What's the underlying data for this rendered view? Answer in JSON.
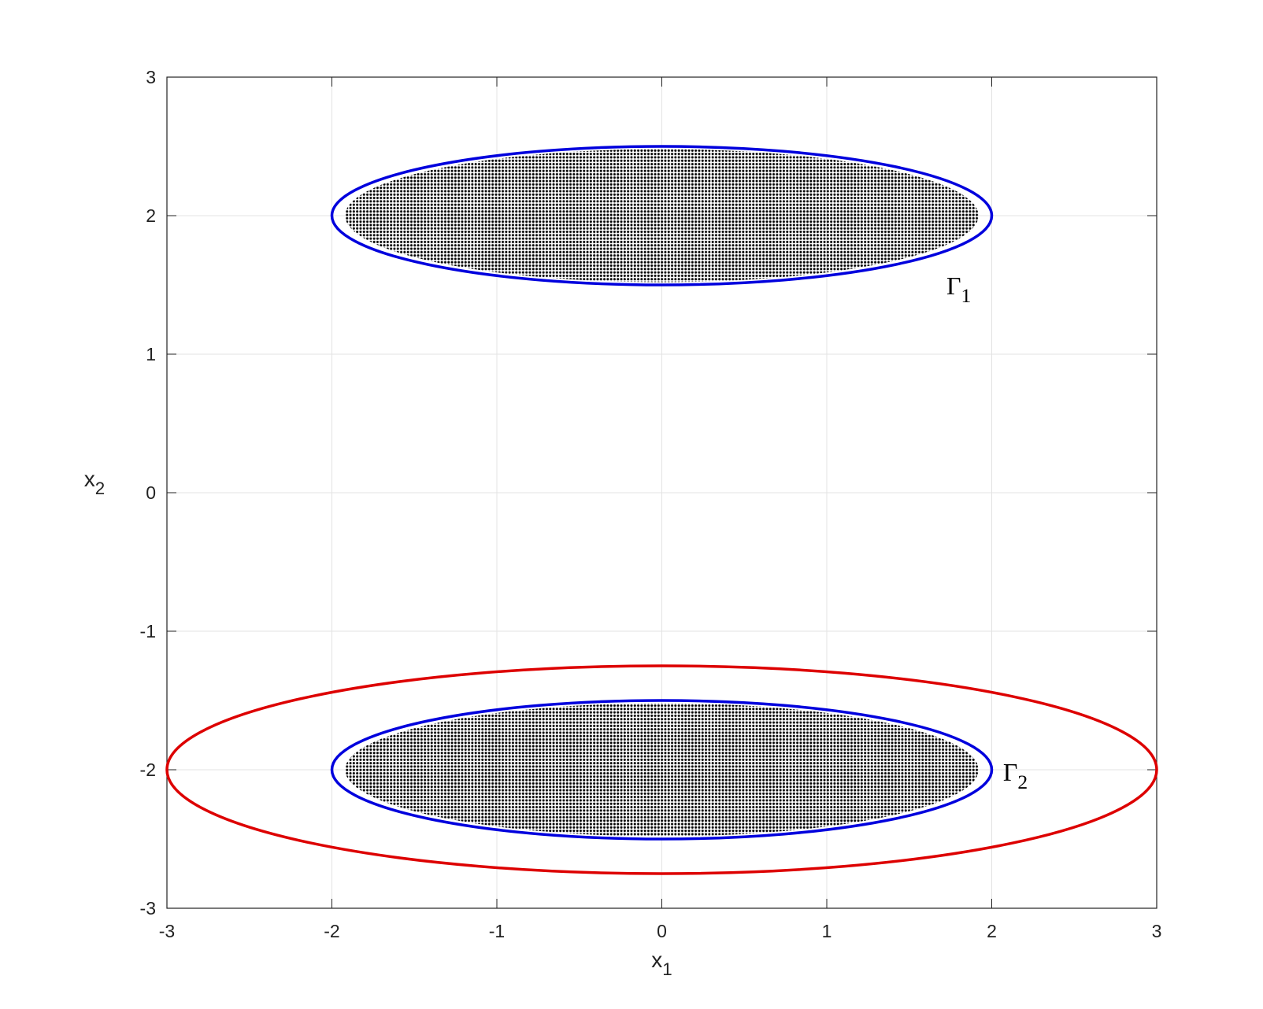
{
  "chart_data": {
    "type": "ellipse",
    "xlabel": {
      "text": "x",
      "sub": "1"
    },
    "ylabel": {
      "text": "x",
      "sub": "2"
    },
    "xlim": [
      -3,
      3
    ],
    "ylim": [
      -3,
      3
    ],
    "xticks": [
      -3,
      -2,
      -1,
      0,
      1,
      2,
      3
    ],
    "yticks": [
      -3,
      -2,
      -1,
      0,
      1,
      2,
      3
    ],
    "grid": true,
    "box": true,
    "ellipses": [
      {
        "center": [
          0,
          2
        ],
        "semi_axes": [
          2,
          0.5
        ],
        "color": "#0000dd",
        "filled_with_points": true,
        "label": {
          "text": "Γ",
          "sub": "1"
        }
      },
      {
        "center": [
          0,
          -2
        ],
        "semi_axes": [
          2,
          0.5
        ],
        "color": "#0000dd",
        "filled_with_points": true,
        "label": {
          "text": "Γ",
          "sub": "2"
        }
      },
      {
        "center": [
          0,
          -2
        ],
        "semi_axes": [
          3,
          0.75
        ],
        "color": "#dd0000",
        "filled_with_points": false
      }
    ]
  }
}
